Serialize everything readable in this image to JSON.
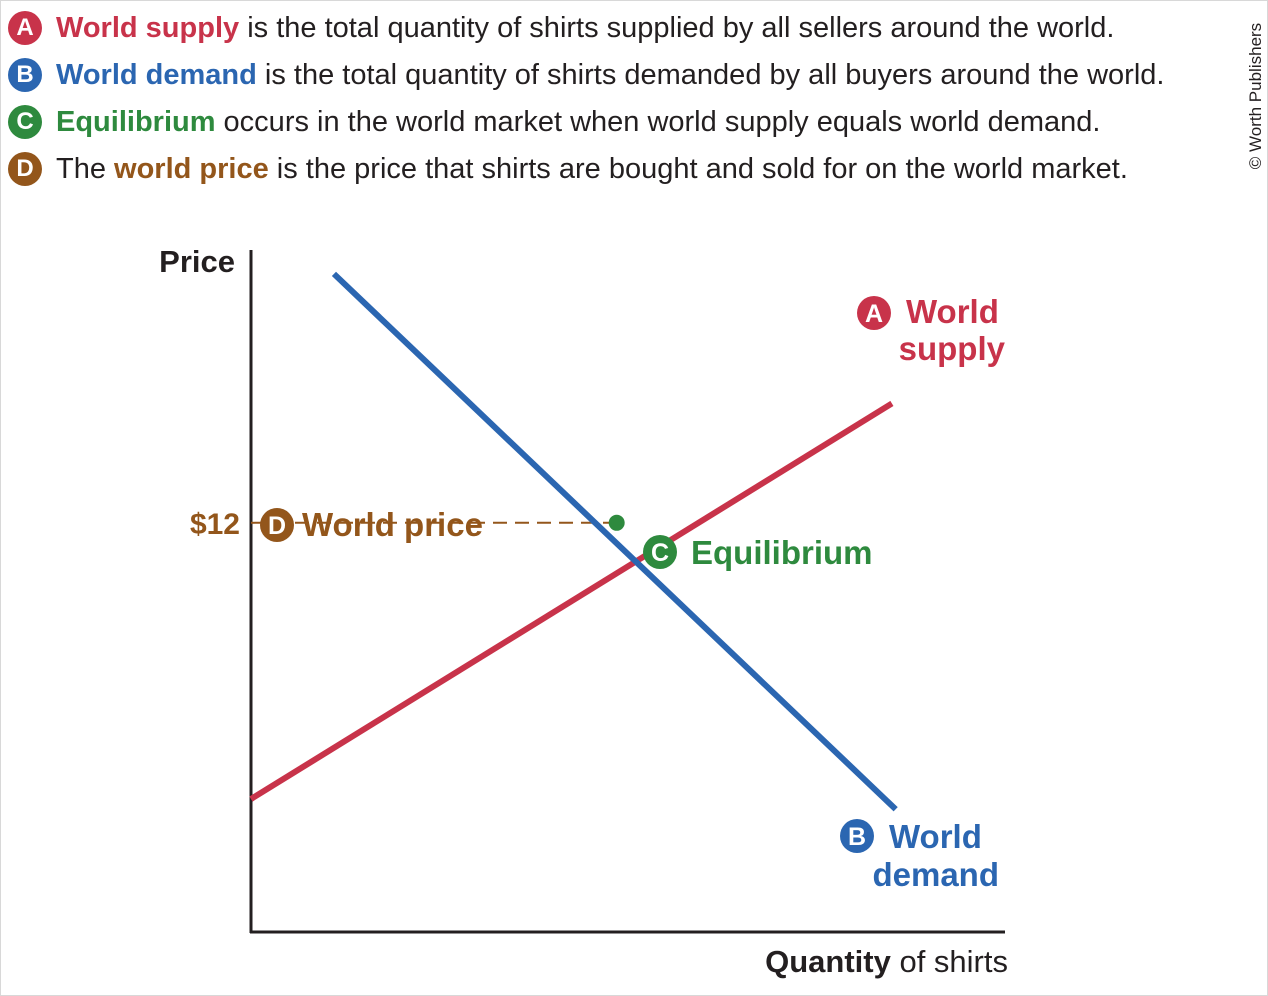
{
  "definitions": [
    {
      "badge": "A",
      "color": "#c8334a",
      "term": "World supply",
      "rest": " is the total quantity of shirts supplied by all sellers around the world."
    },
    {
      "badge": "B",
      "color": "#2b66b1",
      "term": "World demand",
      "rest": " is the total quantity of shirts demanded by all buyers around the world."
    },
    {
      "badge": "C",
      "color": "#2e8a3e",
      "term": "Equilibrium",
      "rest": " occurs in the world market when world supply equals world demand."
    },
    {
      "badge": "D",
      "color": "#93561b",
      "prefix": "The ",
      "term": "world price",
      "rest": " is the price that shirts are bought and sold for on the world market."
    }
  ],
  "copyright": "© Worth Publishers",
  "chart_data": {
    "type": "line",
    "ylabel": "Price",
    "xlabel_bold": "Quantity",
    "xlabel_rest": " of shirts",
    "series": [
      {
        "name": "World supply",
        "badge": "A",
        "label_lines": [
          "World",
          "supply"
        ],
        "color": "#c8334a",
        "points": [
          [
            0,
            3.9
          ],
          [
            17,
            15.5
          ]
        ]
      },
      {
        "name": "World demand",
        "badge": "B",
        "label_lines": [
          "World",
          "demand"
        ],
        "color": "#2b66b1",
        "points": [
          [
            2.2,
            19.3
          ],
          [
            17.1,
            3.6
          ]
        ]
      }
    ],
    "equilibrium": {
      "label": "Equilibrium",
      "badge": "C",
      "color": "#2e8a3e",
      "x": 9.7,
      "y": 12
    },
    "world_price": {
      "label": "World price",
      "badge": "D",
      "color": "#93561b",
      "value": 12,
      "tick_label": "$12"
    },
    "xlim": [
      0,
      20
    ],
    "ylim": [
      0,
      20
    ],
    "grid": false
  }
}
